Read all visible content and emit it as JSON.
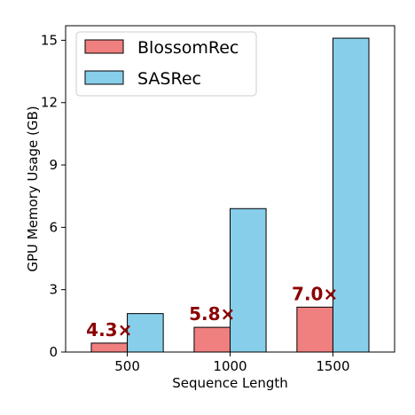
{
  "chart_data": {
    "type": "bar",
    "title": "",
    "xlabel": "Sequence Length",
    "ylabel": "GPU Memory Usage (GB)",
    "categories": [
      "500",
      "1000",
      "1500"
    ],
    "series": [
      {
        "name": "BlossomRec",
        "values": [
          0.43,
          1.19,
          2.16
        ],
        "color": "#F08080"
      },
      {
        "name": "SASRec",
        "values": [
          1.85,
          6.9,
          15.1
        ],
        "color": "#87CEEB"
      }
    ],
    "ylim": [
      0,
      15.7
    ],
    "yticks": [
      0,
      3,
      6,
      9,
      12,
      15
    ],
    "annotations": [
      "4.3×",
      "5.8×",
      "7.0×"
    ],
    "annotation_color": "#8B0000",
    "legend_position": "upper-left",
    "grid": false
  }
}
